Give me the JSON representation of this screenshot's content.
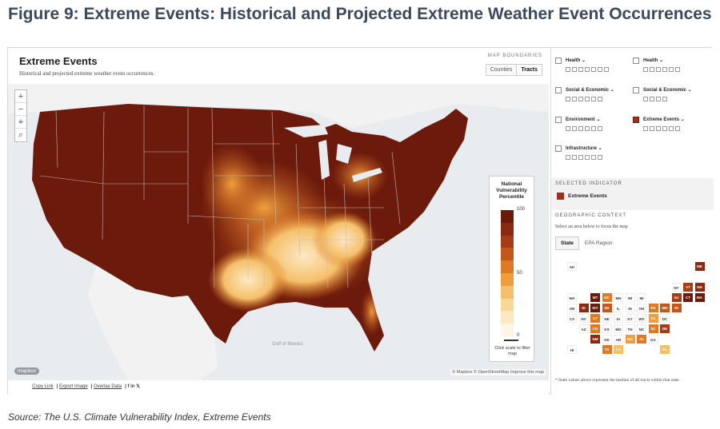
{
  "figure_title": "Figure 9: Extreme Events: Historical and Projected Extreme Weather Event Occurrences",
  "source": "Source: The U.S. Climate Vulnerability Index, Extreme Events",
  "map": {
    "title": "Extreme Events",
    "subtitle": "Historical and projected extreme weather event occurrences.",
    "boundaries_label": "MAP BOUNDARIES",
    "boundary_options": [
      "Counties",
      "Tracts"
    ],
    "selected_boundary": "Tracts",
    "zoom_in": "+",
    "zoom_out": "−",
    "gulf_label": "Gulf of Mexico",
    "mapbox_logo": "mapbox",
    "attribution": "© Mapbox © OpenStreetMap Improve this map",
    "footer_links": [
      "Copy Link",
      "Export Image",
      "Overlay Data"
    ],
    "social_icons": [
      "facebook-icon",
      "linkedin-icon",
      "twitter-icon"
    ]
  },
  "legend": {
    "title": "National Vulnerability Percentile",
    "max_label": "100",
    "mid_label": "50",
    "min_label": "0",
    "hint": "Click scale to filter map",
    "colors": [
      "#6b1a0c",
      "#8a2a12",
      "#a63c16",
      "#c4561b",
      "#de7a24",
      "#ee9e3c",
      "#f5c06a",
      "#f8d896",
      "#fbe9c4",
      "#fdf6e6"
    ]
  },
  "indicators": [
    {
      "label": "Health",
      "checked": false,
      "boxes": 7
    },
    {
      "label": "Health",
      "checked": false,
      "boxes": 6
    },
    {
      "label": "Social & Economic",
      "checked": false,
      "boxes": 6
    },
    {
      "label": "Social & Economic",
      "checked": false,
      "boxes": 4
    },
    {
      "label": "Environment",
      "checked": false,
      "boxes": 6
    },
    {
      "label": "Extreme Events",
      "checked": true,
      "boxes": 6
    },
    {
      "label": "Infrastructure",
      "checked": false,
      "boxes": 6
    }
  ],
  "selected_indicator": {
    "heading": "SELECTED INDICATOR",
    "label": "Extreme Events",
    "color": "#a0301a"
  },
  "geographic_context": {
    "heading": "GEOGRAPHIC CONTEXT",
    "help": "Select an area below to focus the map",
    "tabs": [
      "State",
      "EPA Region"
    ],
    "active_tab": "State"
  },
  "state_tiles": [
    {
      "abbr": "AK",
      "col": 0,
      "row": 0,
      "color": "#ffffff"
    },
    {
      "abbr": "ME",
      "col": 11,
      "row": 0,
      "color": "#8a2a12"
    },
    {
      "abbr": "NY",
      "col": 9,
      "row": 2,
      "color": "#ffffff"
    },
    {
      "abbr": "VT",
      "col": 10,
      "row": 2,
      "color": "#a63c16"
    },
    {
      "abbr": "NH",
      "col": 11,
      "row": 2,
      "color": "#8a2a12"
    },
    {
      "abbr": "WA",
      "col": 0,
      "row": 3,
      "color": "#ffffff"
    },
    {
      "abbr": "MT",
      "col": 2,
      "row": 3,
      "color": "#6b1a0c"
    },
    {
      "abbr": "NC",
      "col": 3,
      "row": 3,
      "color": "#de7a24"
    },
    {
      "abbr": "MN",
      "col": 4,
      "row": 3,
      "color": "#ffffff"
    },
    {
      "abbr": "WI",
      "col": 5,
      "row": 3,
      "color": "#ffffff"
    },
    {
      "abbr": "MI",
      "col": 6,
      "row": 3,
      "color": "#ffffff"
    },
    {
      "abbr": "NJ",
      "col": 9,
      "row": 3,
      "color": "#a63c16"
    },
    {
      "abbr": "CT",
      "col": 10,
      "row": 3,
      "color": "#6b1a0c"
    },
    {
      "abbr": "MA",
      "col": 11,
      "row": 3,
      "color": "#6b1a0c"
    },
    {
      "abbr": "OR",
      "col": 0,
      "row": 4,
      "color": "#ffffff"
    },
    {
      "abbr": "ID",
      "col": 1,
      "row": 4,
      "color": "#8a2a12"
    },
    {
      "abbr": "WY",
      "col": 2,
      "row": 4,
      "color": "#6b1a0c"
    },
    {
      "abbr": "SD",
      "col": 3,
      "row": 4,
      "color": "#c4561b"
    },
    {
      "abbr": "IL",
      "col": 4,
      "row": 4,
      "color": "#ffffff"
    },
    {
      "abbr": "IN",
      "col": 5,
      "row": 4,
      "color": "#ffffff"
    },
    {
      "abbr": "OH",
      "col": 6,
      "row": 4,
      "color": "#ffffff"
    },
    {
      "abbr": "PA",
      "col": 7,
      "row": 4,
      "color": "#de7a24"
    },
    {
      "abbr": "MD",
      "col": 8,
      "row": 4,
      "color": "#c4561b"
    },
    {
      "abbr": "RI",
      "col": 9,
      "row": 4,
      "color": "#c4561b"
    },
    {
      "abbr": "CA",
      "col": 0,
      "row": 5,
      "color": "#ffffff"
    },
    {
      "abbr": "NV",
      "col": 1,
      "row": 5,
      "color": "#ffffff"
    },
    {
      "abbr": "UT",
      "col": 2,
      "row": 5,
      "color": "#de7a24"
    },
    {
      "abbr": "NE",
      "col": 3,
      "row": 5,
      "color": "#ffffff"
    },
    {
      "abbr": "IA",
      "col": 4,
      "row": 5,
      "color": "#ffffff"
    },
    {
      "abbr": "KY",
      "col": 5,
      "row": 5,
      "color": "#ffffff"
    },
    {
      "abbr": "WV",
      "col": 6,
      "row": 5,
      "color": "#ffffff"
    },
    {
      "abbr": "VA",
      "col": 7,
      "row": 5,
      "color": "#ee9e3c"
    },
    {
      "abbr": "DC",
      "col": 8,
      "row": 5,
      "color": "#ffffff"
    },
    {
      "abbr": "AZ",
      "col": 1,
      "row": 6,
      "color": "#ffffff"
    },
    {
      "abbr": "CO",
      "col": 2,
      "row": 6,
      "color": "#de7a24"
    },
    {
      "abbr": "KS",
      "col": 3,
      "row": 6,
      "color": "#ffffff"
    },
    {
      "abbr": "MO",
      "col": 4,
      "row": 6,
      "color": "#ffffff"
    },
    {
      "abbr": "TN",
      "col": 5,
      "row": 6,
      "color": "#ffffff"
    },
    {
      "abbr": "NC",
      "col": 6,
      "row": 6,
      "color": "#ffffff"
    },
    {
      "abbr": "SC",
      "col": 7,
      "row": 6,
      "color": "#de7a24"
    },
    {
      "abbr": "DE",
      "col": 8,
      "row": 6,
      "color": "#a63c16"
    },
    {
      "abbr": "NM",
      "col": 2,
      "row": 7,
      "color": "#8a2a12"
    },
    {
      "abbr": "OK",
      "col": 3,
      "row": 7,
      "color": "#ffffff"
    },
    {
      "abbr": "AR",
      "col": 4,
      "row": 7,
      "color": "#ffffff"
    },
    {
      "abbr": "MS",
      "col": 5,
      "row": 7,
      "color": "#ee9e3c"
    },
    {
      "abbr": "AL",
      "col": 6,
      "row": 7,
      "color": "#de7a24"
    },
    {
      "abbr": "GA",
      "col": 7,
      "row": 7,
      "color": "#ffffff"
    },
    {
      "abbr": "HI",
      "col": 0,
      "row": 8,
      "color": "#ffffff"
    },
    {
      "abbr": "TX",
      "col": 3,
      "row": 8,
      "color": "#de7a24"
    },
    {
      "abbr": "LA",
      "col": 4,
      "row": 8,
      "color": "#f5c06a"
    },
    {
      "abbr": "FL",
      "col": 8,
      "row": 8,
      "color": "#f5c06a"
    }
  ],
  "note": "* State values above represent the median of all tracts within that state"
}
